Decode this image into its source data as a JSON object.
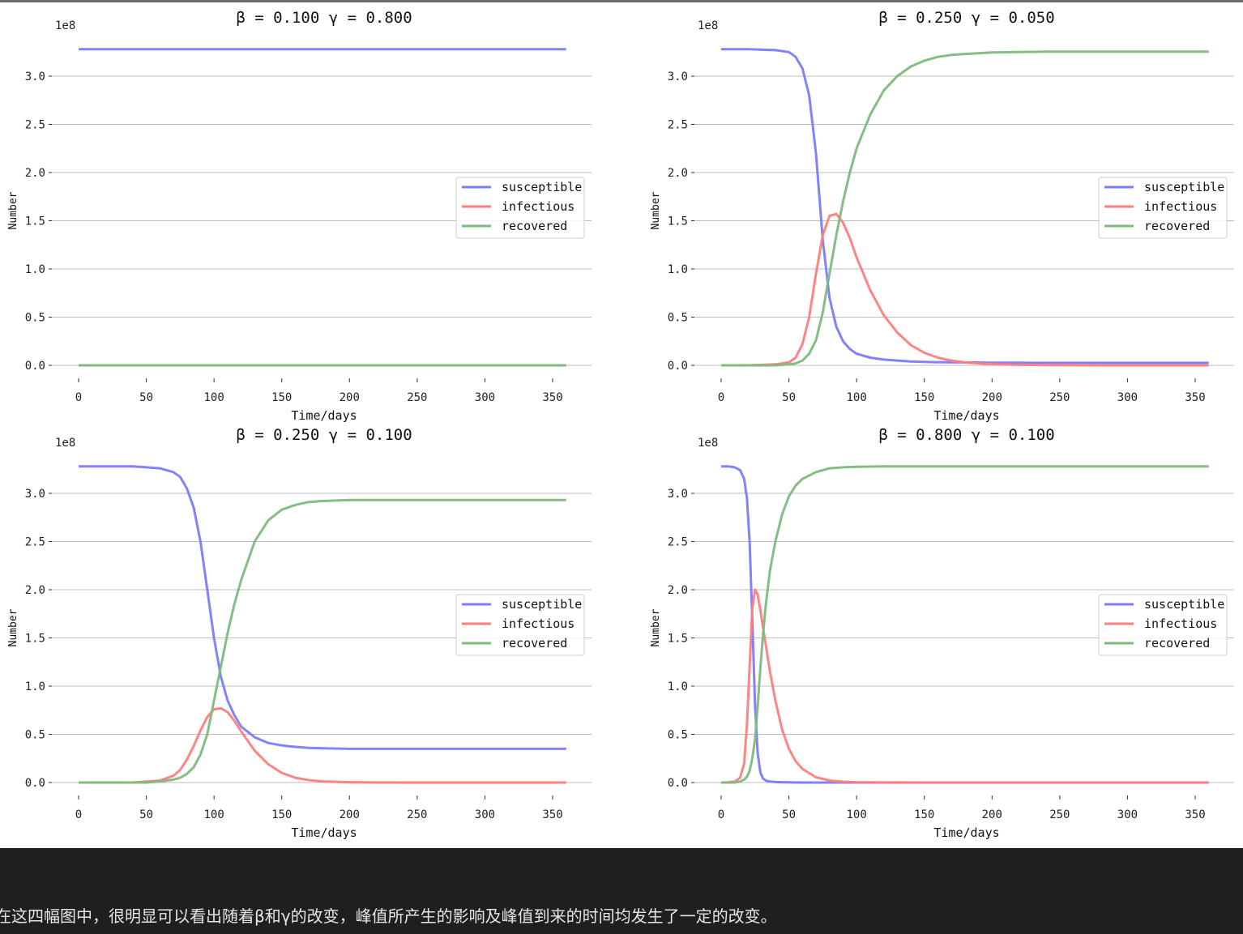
{
  "colors": {
    "susceptible": "#7b7bff",
    "infectious": "#ff7d7d",
    "recovered": "#7dbb7d",
    "grid": "#bdbdbd",
    "caption_bg": "#1f1f1f",
    "caption_text": "#e6e6e6"
  },
  "chart_data": [
    {
      "type": "line",
      "title": "β = 0.100   γ = 0.800",
      "xlabel": "Time/days",
      "ylabel": "Number",
      "offset_label": "1e8",
      "xlim": [
        0,
        360
      ],
      "ylim": [
        0,
        3.35
      ],
      "xticks": [
        "0",
        "50",
        "100",
        "150",
        "200",
        "250",
        "300",
        "350"
      ],
      "yticks": [
        "0.0",
        "0.5",
        "1.0",
        "1.5",
        "2.0",
        "2.5",
        "3.0"
      ],
      "grid": "horizontal",
      "legend": "center-right",
      "x": [
        0,
        20,
        40,
        60,
        80,
        100,
        120,
        140,
        160,
        180,
        200,
        220,
        240,
        260,
        280,
        300,
        320,
        340,
        360
      ],
      "series": [
        {
          "name": "susceptible",
          "values": [
            3.28,
            3.28,
            3.28,
            3.28,
            3.28,
            3.28,
            3.28,
            3.28,
            3.28,
            3.28,
            3.28,
            3.28,
            3.28,
            3.28,
            3.28,
            3.28,
            3.28,
            3.28,
            3.28
          ]
        },
        {
          "name": "infectious",
          "values": [
            0,
            0,
            0,
            0,
            0,
            0,
            0,
            0,
            0,
            0,
            0,
            0,
            0,
            0,
            0,
            0,
            0,
            0,
            0
          ]
        },
        {
          "name": "recovered",
          "values": [
            0,
            0,
            0,
            0,
            0,
            0,
            0,
            0,
            0,
            0,
            0,
            0,
            0,
            0,
            0,
            0,
            0,
            0,
            0
          ]
        }
      ]
    },
    {
      "type": "line",
      "title": "β = 0.250   γ = 0.050",
      "xlabel": "Time/days",
      "ylabel": "Number",
      "offset_label": "1e8",
      "xlim": [
        0,
        360
      ],
      "ylim": [
        0,
        3.35
      ],
      "xticks": [
        "0",
        "50",
        "100",
        "150",
        "200",
        "250",
        "300",
        "350"
      ],
      "yticks": [
        "0.0",
        "0.5",
        "1.0",
        "1.5",
        "2.0",
        "2.5",
        "3.0"
      ],
      "grid": "horizontal",
      "legend": "center-right",
      "x": [
        0,
        20,
        40,
        50,
        55,
        60,
        65,
        70,
        75,
        80,
        85,
        90,
        95,
        100,
        110,
        120,
        130,
        140,
        150,
        160,
        170,
        180,
        200,
        220,
        240,
        260,
        280,
        300,
        320,
        340,
        360
      ],
      "series": [
        {
          "name": "susceptible",
          "values": [
            3.28,
            3.28,
            3.27,
            3.25,
            3.2,
            3.08,
            2.8,
            2.2,
            1.3,
            0.7,
            0.4,
            0.25,
            0.17,
            0.12,
            0.08,
            0.06,
            0.05,
            0.04,
            0.035,
            0.033,
            0.031,
            0.03,
            0.028,
            0.027,
            0.026,
            0.026,
            0.026,
            0.026,
            0.026,
            0.026,
            0.026
          ]
        },
        {
          "name": "infectious",
          "values": [
            0,
            0,
            0.01,
            0.03,
            0.08,
            0.22,
            0.5,
            0.95,
            1.35,
            1.55,
            1.57,
            1.48,
            1.32,
            1.12,
            0.78,
            0.52,
            0.34,
            0.21,
            0.13,
            0.08,
            0.05,
            0.03,
            0.01,
            0.005,
            0.002,
            0.001,
            0,
            0,
            0,
            0,
            0
          ]
        },
        {
          "name": "recovered",
          "values": [
            0,
            0,
            0,
            0.01,
            0.02,
            0.05,
            0.12,
            0.26,
            0.55,
            0.95,
            1.35,
            1.7,
            2.0,
            2.25,
            2.6,
            2.85,
            3.0,
            3.1,
            3.16,
            3.2,
            3.22,
            3.23,
            3.245,
            3.25,
            3.255,
            3.255,
            3.255,
            3.255,
            3.255,
            3.255,
            3.255
          ]
        }
      ]
    },
    {
      "type": "line",
      "title": "β = 0.250   γ = 0.100",
      "xlabel": "Time/days",
      "ylabel": "Number",
      "offset_label": "1e8",
      "xlim": [
        0,
        360
      ],
      "ylim": [
        0,
        3.35
      ],
      "xticks": [
        "0",
        "50",
        "100",
        "150",
        "200",
        "250",
        "300",
        "350"
      ],
      "yticks": [
        "0.0",
        "0.5",
        "1.0",
        "1.5",
        "2.0",
        "2.5",
        "3.0"
      ],
      "grid": "horizontal",
      "legend": "center-right",
      "x": [
        0,
        20,
        40,
        50,
        60,
        70,
        75,
        80,
        85,
        90,
        95,
        100,
        105,
        110,
        115,
        120,
        130,
        140,
        150,
        160,
        170,
        180,
        200,
        220,
        240,
        260,
        280,
        300,
        320,
        340,
        360
      ],
      "series": [
        {
          "name": "susceptible",
          "values": [
            3.28,
            3.28,
            3.28,
            3.27,
            3.26,
            3.22,
            3.17,
            3.05,
            2.85,
            2.5,
            2.0,
            1.5,
            1.1,
            0.85,
            0.7,
            0.58,
            0.47,
            0.41,
            0.385,
            0.37,
            0.36,
            0.355,
            0.35,
            0.35,
            0.35,
            0.35,
            0.35,
            0.35,
            0.35,
            0.35,
            0.35
          ]
        },
        {
          "name": "infectious",
          "values": [
            0,
            0,
            0,
            0.01,
            0.02,
            0.07,
            0.13,
            0.24,
            0.38,
            0.54,
            0.68,
            0.76,
            0.77,
            0.73,
            0.64,
            0.53,
            0.33,
            0.19,
            0.1,
            0.05,
            0.025,
            0.012,
            0.003,
            0.001,
            0,
            0,
            0,
            0,
            0,
            0,
            0
          ]
        },
        {
          "name": "recovered",
          "values": [
            0,
            0,
            0,
            0,
            0.01,
            0.03,
            0.05,
            0.09,
            0.16,
            0.29,
            0.5,
            0.85,
            1.2,
            1.55,
            1.85,
            2.1,
            2.5,
            2.72,
            2.83,
            2.88,
            2.91,
            2.92,
            2.93,
            2.93,
            2.93,
            2.93,
            2.93,
            2.93,
            2.93,
            2.93,
            2.93
          ]
        }
      ]
    },
    {
      "type": "line",
      "title": "β = 0.800   γ = 0.100",
      "xlabel": "Time/days",
      "ylabel": "Number",
      "offset_label": "1e8",
      "xlim": [
        0,
        360
      ],
      "ylim": [
        0,
        3.35
      ],
      "xticks": [
        "0",
        "50",
        "100",
        "150",
        "200",
        "250",
        "300",
        "350"
      ],
      "yticks": [
        "0.0",
        "0.5",
        "1.0",
        "1.5",
        "2.0",
        "2.5",
        "3.0"
      ],
      "grid": "horizontal",
      "legend": "center-right",
      "x": [
        0,
        5,
        10,
        14,
        17,
        19,
        21,
        23,
        25,
        27,
        29,
        31,
        33,
        36,
        40,
        45,
        50,
        55,
        60,
        70,
        80,
        90,
        100,
        120,
        150,
        200,
        250,
        300,
        360
      ],
      "series": [
        {
          "name": "susceptible",
          "values": [
            3.28,
            3.28,
            3.27,
            3.24,
            3.15,
            2.95,
            2.5,
            1.7,
            0.8,
            0.3,
            0.1,
            0.04,
            0.02,
            0.01,
            0.005,
            0.003,
            0.002,
            0.001,
            0,
            0,
            0,
            0,
            0,
            0,
            0,
            0,
            0,
            0,
            0
          ]
        },
        {
          "name": "infectious",
          "values": [
            0,
            0.002,
            0.01,
            0.05,
            0.2,
            0.6,
            1.2,
            1.8,
            2.0,
            1.95,
            1.78,
            1.6,
            1.42,
            1.15,
            0.85,
            0.55,
            0.35,
            0.22,
            0.14,
            0.055,
            0.02,
            0.008,
            0.003,
            0.001,
            0,
            0,
            0,
            0,
            0
          ]
        },
        {
          "name": "recovered",
          "values": [
            0,
            0,
            0,
            0.01,
            0.03,
            0.06,
            0.12,
            0.25,
            0.45,
            0.8,
            1.2,
            1.55,
            1.85,
            2.2,
            2.5,
            2.78,
            2.97,
            3.08,
            3.15,
            3.22,
            3.26,
            3.27,
            3.275,
            3.28,
            3.28,
            3.28,
            3.28,
            3.28,
            3.28
          ]
        }
      ]
    }
  ],
  "caption": "在这四幅图中，很明显可以看出随着β和γ的改变，峰值所产生的影响及峰值到来的时间均发生了一定的改变。"
}
